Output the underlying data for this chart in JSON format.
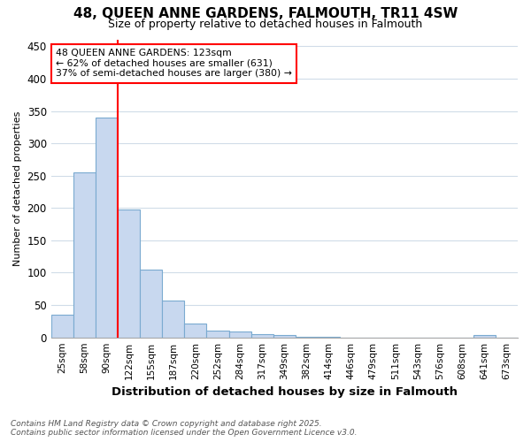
{
  "title_line1": "48, QUEEN ANNE GARDENS, FALMOUTH, TR11 4SW",
  "title_line2": "Size of property relative to detached houses in Falmouth",
  "xlabel": "Distribution of detached houses by size in Falmouth",
  "ylabel": "Number of detached properties",
  "categories": [
    "25sqm",
    "58sqm",
    "90sqm",
    "122sqm",
    "155sqm",
    "187sqm",
    "220sqm",
    "252sqm",
    "284sqm",
    "317sqm",
    "349sqm",
    "382sqm",
    "414sqm",
    "446sqm",
    "479sqm",
    "511sqm",
    "543sqm",
    "576sqm",
    "608sqm",
    "641sqm",
    "673sqm"
  ],
  "values": [
    35,
    255,
    340,
    197,
    105,
    57,
    21,
    11,
    9,
    5,
    4,
    1,
    1,
    0,
    0,
    0,
    0,
    0,
    0,
    3,
    0
  ],
  "bar_color": "#c8d8ef",
  "bar_edge_color": "#7aaad0",
  "red_line_index": 3,
  "annotation_text": "48 QUEEN ANNE GARDENS: 123sqm\n← 62% of detached houses are smaller (631)\n37% of semi-detached houses are larger (380) →",
  "annotation_box_color": "white",
  "annotation_box_edge": "red",
  "footnote_line1": "Contains HM Land Registry data © Crown copyright and database right 2025.",
  "footnote_line2": "Contains public sector information licensed under the Open Government Licence v3.0.",
  "ylim": [
    0,
    460
  ],
  "yticks": [
    0,
    50,
    100,
    150,
    200,
    250,
    300,
    350,
    400,
    450
  ],
  "background_color": "#ffffff",
  "grid_color": "#d0dce8",
  "title_fontsize": 11,
  "subtitle_fontsize": 9
}
